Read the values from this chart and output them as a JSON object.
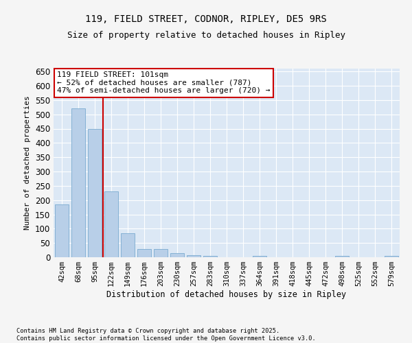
{
  "title": "119, FIELD STREET, CODNOR, RIPLEY, DE5 9RS",
  "subtitle": "Size of property relative to detached houses in Ripley",
  "xlabel": "Distribution of detached houses by size in Ripley",
  "ylabel": "Number of detached properties",
  "categories": [
    "42sqm",
    "68sqm",
    "95sqm",
    "122sqm",
    "149sqm",
    "176sqm",
    "203sqm",
    "230sqm",
    "257sqm",
    "283sqm",
    "310sqm",
    "337sqm",
    "364sqm",
    "391sqm",
    "418sqm",
    "445sqm",
    "472sqm",
    "498sqm",
    "525sqm",
    "552sqm",
    "579sqm"
  ],
  "values": [
    185,
    520,
    450,
    230,
    85,
    28,
    28,
    15,
    8,
    5,
    0,
    0,
    5,
    0,
    0,
    0,
    0,
    5,
    0,
    0,
    5
  ],
  "bar_color": "#b8cfe8",
  "bar_edge_color": "#7aaad0",
  "vline_x_index": 2,
  "vline_color": "#cc0000",
  "annotation_text": "119 FIELD STREET: 101sqm\n← 52% of detached houses are smaller (787)\n47% of semi-detached houses are larger (720) →",
  "annotation_box_facecolor": "#ffffff",
  "annotation_box_edgecolor": "#cc0000",
  "ylim": [
    0,
    660
  ],
  "yticks": [
    0,
    50,
    100,
    150,
    200,
    250,
    300,
    350,
    400,
    450,
    500,
    550,
    600,
    650
  ],
  "bg_color": "#dce8f5",
  "grid_color": "#ffffff",
  "fig_facecolor": "#f5f5f5",
  "footer_line1": "Contains HM Land Registry data © Crown copyright and database right 2025.",
  "footer_line2": "Contains public sector information licensed under the Open Government Licence v3.0."
}
